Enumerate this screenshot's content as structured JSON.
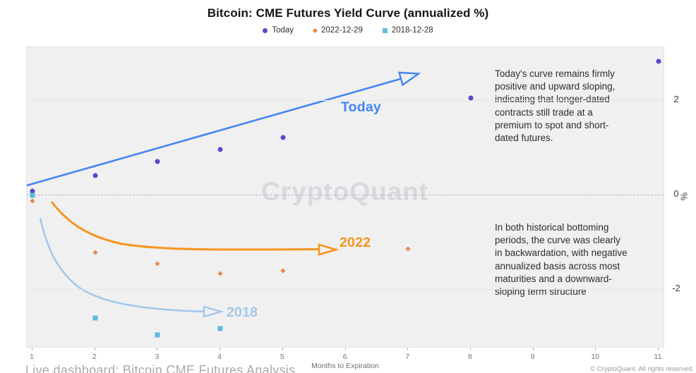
{
  "title": "Bitcoin: CME Futures Yield Curve (annualized %)",
  "legend": [
    {
      "label": "Today",
      "color": "#5a46cf",
      "marker": "circle"
    },
    {
      "label": "2022-12-29",
      "color": "#e8883f",
      "marker": "diamond"
    },
    {
      "label": "2018-12-28",
      "color": "#62bcde",
      "marker": "square"
    }
  ],
  "chart_data": {
    "type": "scatter",
    "title": "Bitcoin: CME Futures Yield Curve (annualized %)",
    "xlabel": "Months to Expiration",
    "ylabel": "%",
    "x_ticks": [
      1,
      2,
      3,
      4,
      5,
      6,
      7,
      8,
      9,
      10,
      11
    ],
    "y_ticks": [
      2,
      0,
      -2
    ],
    "xlim": [
      0.9,
      11.1
    ],
    "ylim": [
      -3.26,
      3.13
    ],
    "grid": "horizontal",
    "zero_line": "dashed",
    "legend_position": "top",
    "series": [
      {
        "name": "Today",
        "marker": "circle",
        "color": "#5a46cf",
        "x": [
          1,
          2,
          3,
          4,
          5,
          8,
          11
        ],
        "y": [
          0.07,
          0.41,
          0.7,
          0.96,
          1.22,
          2.05,
          2.83
        ]
      },
      {
        "name": "2022-12-29",
        "marker": "diamond",
        "color": "#e08a4c",
        "x": [
          1,
          2,
          3,
          4,
          5,
          7
        ],
        "y": [
          -0.13,
          -1.23,
          -1.46,
          -1.68,
          -1.61,
          -1.16
        ]
      },
      {
        "name": "2018-12-28",
        "marker": "square",
        "color": "#5cb9dc",
        "x": [
          1,
          2,
          3,
          4
        ],
        "y": [
          -0.01,
          -2.62,
          -2.98,
          -2.85
        ]
      }
    ]
  },
  "annotations": {
    "today_label": "Today",
    "today_color": "#4285f4",
    "label_2022": "2022",
    "color_2022": "#f7941e",
    "label_2018": "2018",
    "color_2018": "#a3c8ea",
    "note_top": "Today's curve remains firmly positive and upward sloping, indicating that longer-dated contracts still trade at a premium to spot and short-dated futures.",
    "note_bottom": "In both historical bottoming periods, the curve was clearly in backwardation, with negative annualized basis across most maturities and a downward-sloping term structure"
  },
  "watermark": "CryptoQuant",
  "footer": {
    "caption": "Live dashboard: Bitcoin CME Futures Analysis",
    "copyright": "© CryptoQuant. All rights reserved."
  }
}
